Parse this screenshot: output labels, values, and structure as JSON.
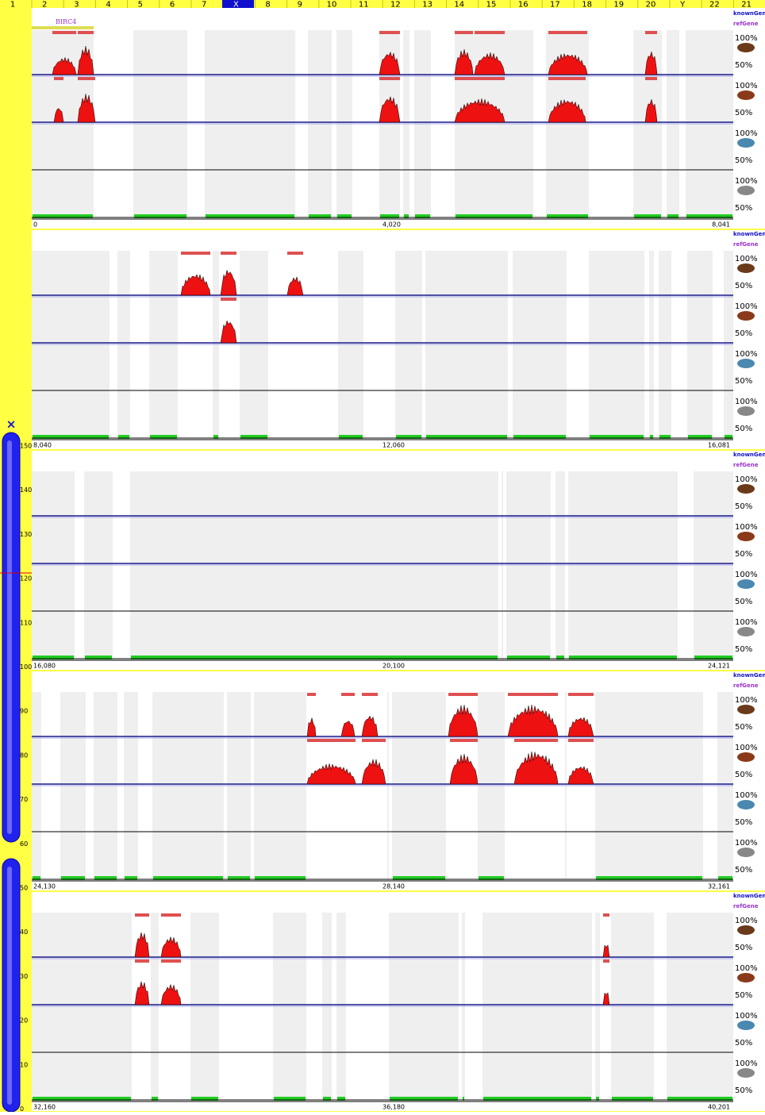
{
  "chromosome_bar": {
    "labels": [
      "1",
      "2",
      "3",
      "4",
      "5",
      "6",
      "7",
      "X",
      "8",
      "9",
      "10",
      "11",
      "12",
      "13",
      "14",
      "15",
      "16",
      "17",
      "18",
      "19",
      "20",
      "Y",
      "22",
      "21"
    ]
  },
  "ideogram": {
    "close": "×",
    "ticks": [
      "150",
      "140",
      "130",
      "120",
      "110",
      "100",
      "90",
      "80",
      "70",
      "60",
      "50",
      "40",
      "30",
      "20",
      "10",
      "0"
    ]
  },
  "gene": "BIRC4",
  "track_labels": {
    "known": "knownGene",
    "ref": "refGene"
  },
  "percent": {
    "high": "100%",
    "low": "50%"
  },
  "panels": [
    {
      "start": "0",
      "mid": "4,020",
      "end": "8,041"
    },
    {
      "start": "8,040",
      "mid": "12,060",
      "end": "16,081"
    },
    {
      "start": "16,080",
      "mid": "20,100",
      "end": "24,121"
    },
    {
      "start": "24,130",
      "mid": "28,140",
      "end": "32,161"
    },
    {
      "start": "32,160",
      "mid": "36,180",
      "end": "40,201"
    }
  ]
}
